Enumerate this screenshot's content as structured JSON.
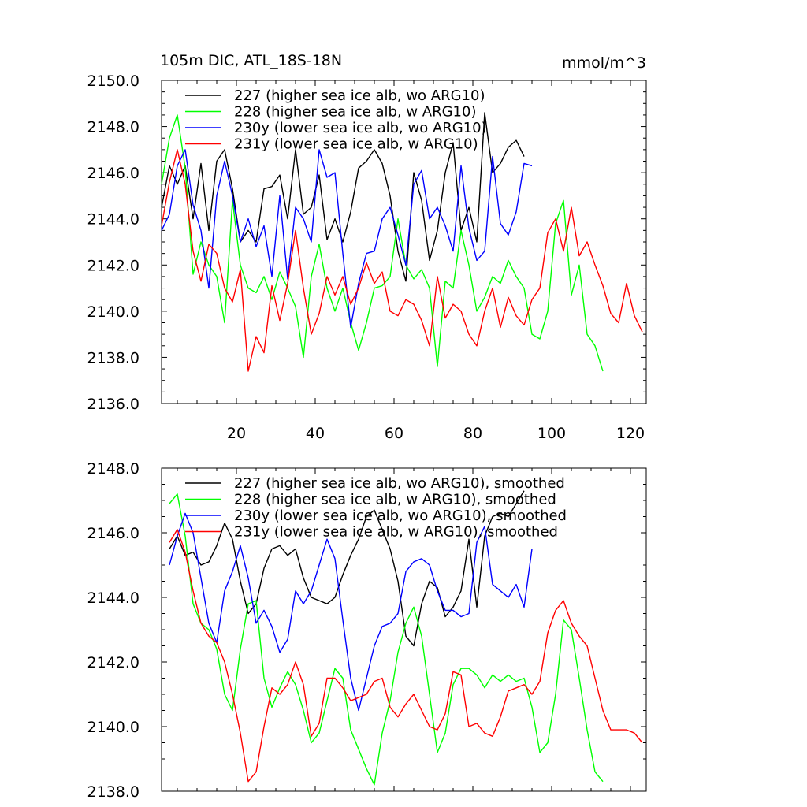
{
  "chart_data": [
    {
      "type": "line",
      "title": "105m DIC, ATL_18S-18N",
      "units": "mmol/m^3",
      "xlim": [
        1,
        124
      ],
      "ylim": [
        2136,
        2150
      ],
      "yticks": [
        "2136.0",
        "2138.0",
        "2140.0",
        "2142.0",
        "2144.0",
        "2146.0",
        "2148.0",
        "2150.0"
      ],
      "xticks": [
        "20",
        "40",
        "60",
        "80",
        "100",
        "120"
      ],
      "series": [
        {
          "name": "227 (higher sea ice alb, wo ARG10)",
          "color": "#000000",
          "x": [
            1,
            3,
            5,
            7,
            9,
            11,
            13,
            15,
            17,
            19,
            21,
            23,
            25,
            27,
            29,
            31,
            33,
            35,
            37,
            39,
            41,
            43,
            45,
            47,
            49,
            51,
            53,
            55,
            57,
            59,
            61,
            63,
            65,
            67,
            69,
            71,
            73,
            75,
            77,
            79,
            81,
            83,
            85,
            87,
            89,
            91,
            93
          ],
          "y": [
            2144.5,
            2146.3,
            2145.5,
            2146.3,
            2144.0,
            2146.4,
            2143.5,
            2146.5,
            2147.0,
            2145.3,
            2143.0,
            2143.5,
            2143.0,
            2145.3,
            2145.4,
            2145.9,
            2144.0,
            2147.0,
            2144.2,
            2144.5,
            2145.9,
            2143.1,
            2144.0,
            2143.0,
            2144.3,
            2146.2,
            2146.5,
            2147.0,
            2146.4,
            2145.0,
            2142.6,
            2141.3,
            2146.0,
            2144.8,
            2142.2,
            2143.5,
            2146.0,
            2147.3,
            2143.5,
            2144.5,
            2143.0,
            2148.6,
            2146.0,
            2146.4,
            2147.1,
            2147.4,
            2146.7
          ]
        },
        {
          "name": "228 (higher sea ice alb, w ARG10)",
          "color": "#00ff00",
          "x": [
            1,
            3,
            5,
            7,
            9,
            11,
            13,
            15,
            17,
            19,
            21,
            23,
            25,
            27,
            29,
            31,
            33,
            35,
            37,
            39,
            41,
            43,
            45,
            47,
            49,
            51,
            53,
            55,
            57,
            59,
            61,
            63,
            65,
            67,
            69,
            71,
            73,
            75,
            77,
            79,
            81,
            83,
            85,
            87,
            89,
            91,
            93,
            95,
            97,
            99,
            101,
            103,
            105,
            107,
            109,
            111,
            113
          ],
          "y": [
            2145.5,
            2147.5,
            2148.5,
            2146.2,
            2141.6,
            2143.0,
            2142.0,
            2141.5,
            2139.5,
            2144.8,
            2142.0,
            2141.0,
            2140.8,
            2141.5,
            2140.5,
            2141.7,
            2141.0,
            2140.2,
            2138.0,
            2141.5,
            2142.9,
            2141.0,
            2140.0,
            2141.0,
            2139.5,
            2138.3,
            2139.5,
            2141.0,
            2141.1,
            2141.5,
            2144.0,
            2142.0,
            2141.4,
            2141.8,
            2141.0,
            2137.6,
            2141.3,
            2141.0,
            2143.5,
            2142.0,
            2140.0,
            2140.6,
            2141.5,
            2141.2,
            2142.2,
            2141.5,
            2141.0,
            2139.0,
            2138.8,
            2140.0,
            2143.8,
            2144.8,
            2140.7,
            2142.0,
            2139.0,
            2138.5,
            2137.4
          ]
        },
        {
          "name": "230y (lower sea ice alb, wo ARG10)",
          "color": "#0000ff",
          "x": [
            1,
            3,
            5,
            7,
            9,
            11,
            13,
            15,
            17,
            19,
            21,
            23,
            25,
            27,
            29,
            31,
            33,
            35,
            37,
            39,
            41,
            43,
            45,
            47,
            49,
            51,
            53,
            55,
            57,
            59,
            61,
            63,
            65,
            67,
            69,
            71,
            73,
            75,
            77,
            79,
            81,
            83,
            85,
            87,
            89,
            91,
            93,
            95
          ],
          "y": [
            2143.5,
            2144.2,
            2146.3,
            2147.0,
            2144.6,
            2143.5,
            2141.0,
            2145.0,
            2146.5,
            2145.0,
            2143.0,
            2144.0,
            2142.8,
            2143.7,
            2141.5,
            2145.0,
            2141.4,
            2144.5,
            2144.0,
            2143.0,
            2147.0,
            2145.8,
            2146.0,
            2142.5,
            2139.3,
            2141.2,
            2142.5,
            2142.6,
            2144.0,
            2144.5,
            2143.3,
            2142.0,
            2145.5,
            2146.1,
            2144.0,
            2144.5,
            2143.7,
            2142.6,
            2146.3,
            2143.6,
            2142.2,
            2142.6,
            2146.7,
            2143.8,
            2143.3,
            2144.3,
            2146.4,
            2146.3
          ]
        },
        {
          "name": "231y (lower sea ice alb, w ARG10)",
          "color": "#ff0000",
          "x": [
            1,
            3,
            5,
            7,
            9,
            11,
            13,
            15,
            17,
            19,
            21,
            23,
            25,
            27,
            29,
            31,
            33,
            35,
            37,
            39,
            41,
            43,
            45,
            47,
            49,
            51,
            53,
            55,
            57,
            59,
            61,
            63,
            65,
            67,
            69,
            71,
            73,
            75,
            77,
            79,
            81,
            83,
            85,
            87,
            89,
            91,
            93,
            95,
            97,
            99,
            101,
            103,
            105,
            107,
            109,
            111,
            113,
            115,
            117,
            119,
            121,
            123
          ],
          "y": [
            2143.7,
            2145.6,
            2147.0,
            2145.5,
            2142.6,
            2141.3,
            2142.9,
            2142.5,
            2141.0,
            2140.4,
            2141.8,
            2137.4,
            2138.9,
            2138.2,
            2141.1,
            2139.6,
            2141.2,
            2143.5,
            2141.0,
            2139.0,
            2139.9,
            2141.5,
            2140.7,
            2141.5,
            2140.3,
            2141.0,
            2142.1,
            2141.2,
            2141.7,
            2140.0,
            2139.8,
            2140.5,
            2140.3,
            2139.6,
            2138.5,
            2141.5,
            2139.7,
            2140.3,
            2140.0,
            2139.0,
            2138.5,
            2140.0,
            2141.0,
            2139.3,
            2140.6,
            2139.8,
            2139.4,
            2140.5,
            2141.0,
            2143.4,
            2144.0,
            2142.6,
            2144.5,
            2142.4,
            2143.0,
            2142.0,
            2141.1,
            2139.9,
            2139.5,
            2141.2,
            2139.8,
            2139.1
          ]
        }
      ]
    },
    {
      "type": "line",
      "title": "",
      "units": "",
      "xlim": [
        1,
        124
      ],
      "ylim": [
        2138,
        2148
      ],
      "yticks": [
        "2138.0",
        "2140.0",
        "2142.0",
        "2144.0",
        "2146.0",
        "2148.0"
      ],
      "xticks": [],
      "series": [
        {
          "name": "227 (higher sea ice alb, wo ARG10), smoothed",
          "color": "#000000",
          "x": [
            3,
            5,
            7,
            9,
            11,
            13,
            15,
            17,
            19,
            21,
            23,
            25,
            27,
            29,
            31,
            33,
            35,
            37,
            39,
            41,
            43,
            45,
            47,
            49,
            51,
            53,
            55,
            57,
            59,
            61,
            63,
            65,
            67,
            69,
            71,
            73,
            75,
            77,
            79,
            81,
            83,
            85,
            87,
            89,
            91,
            93
          ],
          "y": [
            2145.5,
            2145.9,
            2145.3,
            2145.4,
            2145.0,
            2145.1,
            2145.6,
            2146.3,
            2145.8,
            2144.5,
            2143.5,
            2143.8,
            2144.9,
            2145.5,
            2145.6,
            2145.3,
            2145.5,
            2144.6,
            2144.0,
            2143.9,
            2143.8,
            2144.0,
            2144.7,
            2145.3,
            2145.8,
            2146.5,
            2146.7,
            2146.1,
            2145.5,
            2144.5,
            2142.8,
            2142.5,
            2143.8,
            2144.5,
            2144.3,
            2143.4,
            2143.7,
            2144.2,
            2145.8,
            2143.7,
            2145.9,
            2146.5,
            2146.6,
            2146.5,
            2146.9,
            2147.3
          ]
        },
        {
          "name": "228 (higher sea ice alb, w ARG10), smoothed",
          "color": "#00ff00",
          "x": [
            3,
            5,
            7,
            9,
            11,
            13,
            15,
            17,
            19,
            21,
            23,
            25,
            27,
            29,
            31,
            33,
            35,
            37,
            39,
            41,
            43,
            45,
            47,
            49,
            51,
            53,
            55,
            57,
            59,
            61,
            63,
            65,
            67,
            69,
            71,
            73,
            75,
            77,
            79,
            81,
            83,
            85,
            87,
            89,
            91,
            93,
            95,
            97,
            99,
            101,
            103,
            105,
            107,
            109,
            111,
            113
          ],
          "y": [
            2146.9,
            2147.2,
            2145.9,
            2143.8,
            2143.2,
            2143.0,
            2142.4,
            2141.0,
            2140.5,
            2142.4,
            2143.8,
            2143.9,
            2141.5,
            2140.6,
            2141.2,
            2141.7,
            2141.3,
            2140.5,
            2139.5,
            2139.8,
            2140.8,
            2141.8,
            2141.5,
            2139.9,
            2139.3,
            2138.7,
            2138.2,
            2139.8,
            2140.8,
            2142.3,
            2143.2,
            2143.7,
            2142.8,
            2141.0,
            2139.2,
            2139.8,
            2141.3,
            2141.8,
            2141.8,
            2141.6,
            2141.2,
            2141.6,
            2141.4,
            2141.6,
            2141.4,
            2141.5,
            2140.6,
            2139.2,
            2139.5,
            2141.0,
            2143.3,
            2143.0,
            2141.5,
            2139.9,
            2138.6,
            2138.3
          ]
        },
        {
          "name": "230y (lower sea ice alb, wo ARG10), smoothed",
          "color": "#0000ff",
          "x": [
            3,
            5,
            7,
            9,
            11,
            13,
            15,
            17,
            19,
            21,
            23,
            25,
            27,
            29,
            31,
            33,
            35,
            37,
            39,
            41,
            43,
            45,
            47,
            49,
            51,
            53,
            55,
            57,
            59,
            61,
            63,
            65,
            67,
            69,
            71,
            73,
            75,
            77,
            79,
            81,
            83,
            85,
            87,
            89,
            91,
            93,
            95
          ],
          "y": [
            2145.0,
            2145.9,
            2146.6,
            2146.0,
            2144.6,
            2143.2,
            2142.6,
            2144.2,
            2144.8,
            2145.6,
            2144.6,
            2143.2,
            2143.6,
            2143.1,
            2142.3,
            2142.7,
            2144.2,
            2143.8,
            2144.2,
            2145.0,
            2145.8,
            2145.2,
            2143.3,
            2141.5,
            2140.5,
            2141.5,
            2142.5,
            2143.1,
            2143.2,
            2143.5,
            2144.8,
            2145.1,
            2145.2,
            2145.0,
            2144.2,
            2143.6,
            2143.6,
            2143.4,
            2143.5,
            2145.7,
            2146.2,
            2144.4,
            2144.2,
            2144.0,
            2144.4,
            2143.7,
            2145.5
          ]
        },
        {
          "name": "231y (lower sea ice alb, w ARG10), smoothed",
          "color": "#ff0000",
          "x": [
            3,
            5,
            7,
            9,
            11,
            13,
            15,
            17,
            19,
            21,
            23,
            25,
            27,
            29,
            31,
            33,
            35,
            37,
            39,
            41,
            43,
            45,
            47,
            49,
            51,
            53,
            55,
            57,
            59,
            61,
            63,
            65,
            67,
            69,
            71,
            73,
            75,
            77,
            79,
            81,
            83,
            85,
            87,
            89,
            91,
            93,
            95,
            97,
            99,
            101,
            103,
            105,
            107,
            109,
            111,
            113,
            115,
            117,
            119,
            121,
            123
          ],
          "y": [
            2145.7,
            2146.1,
            2145.4,
            2144.2,
            2143.2,
            2142.8,
            2142.6,
            2142.0,
            2141.0,
            2139.8,
            2138.3,
            2138.6,
            2140.0,
            2141.2,
            2141.0,
            2141.3,
            2142.0,
            2141.3,
            2139.7,
            2140.1,
            2141.5,
            2141.5,
            2141.2,
            2140.8,
            2140.9,
            2141.0,
            2141.4,
            2141.5,
            2140.6,
            2140.3,
            2140.7,
            2141.0,
            2140.5,
            2140.0,
            2139.9,
            2140.4,
            2141.7,
            2141.6,
            2140.0,
            2140.1,
            2139.8,
            2139.7,
            2140.3,
            2141.1,
            2141.2,
            2141.3,
            2141.0,
            2141.4,
            2142.9,
            2143.6,
            2143.9,
            2143.2,
            2142.8,
            2142.5,
            2141.5,
            2140.5,
            2139.9,
            2139.9,
            2139.9,
            2139.8,
            2139.5
          ]
        }
      ]
    }
  ]
}
